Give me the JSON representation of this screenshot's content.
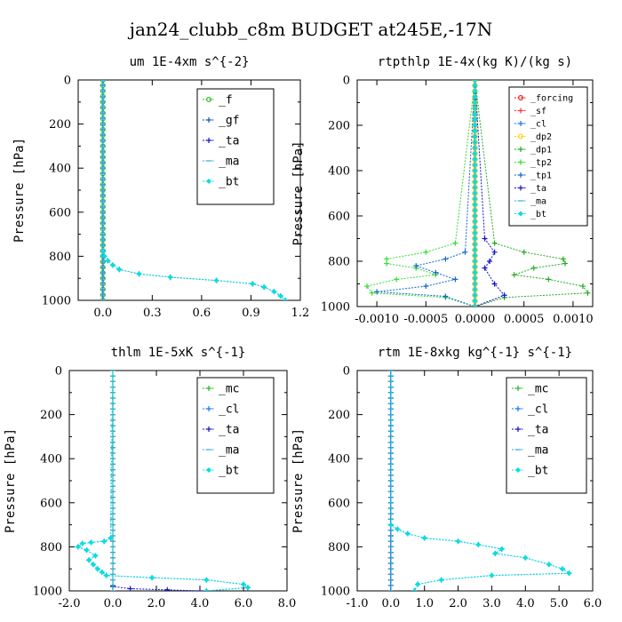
{
  "figure_title": "jan24_clubb_c8m  BUDGET at245E,-17N",
  "colors": {
    "_f": "#22bb22",
    "_gf": "#1155aa",
    "_ta": "#1111cc",
    "_ma": "#33aadd",
    "_bt": "#00e0e0",
    "_mc": "#22bb22",
    "_cl": "#1177ee",
    "_forcing": "#ee1111",
    "_sf": "#ff3333",
    "_dp2": "#ffcc00",
    "_dp1": "#22aa22",
    "_tp2": "#33dd33",
    "_tp1": "#1166cc"
  },
  "chart_data": [
    {
      "type": "line",
      "title": "um  1E-4xm s^{-2}",
      "ylabel": "Pressure [hPa]",
      "xlim": [
        -0.15,
        1.2
      ],
      "ylim": [
        0,
        1000
      ],
      "xticks": [
        "0.0",
        "0.3",
        "0.6",
        "0.9",
        "1.2"
      ],
      "xtick_values": [
        0,
        0.3,
        0.6,
        0.9,
        1.2
      ],
      "yticks": [
        "0",
        "200",
        "400",
        "600",
        "800",
        "1000"
      ],
      "legend": "top-right",
      "series": [
        {
          "name": "_f",
          "x": [
            0,
            0
          ],
          "y": [
            0,
            1000
          ]
        },
        {
          "name": "_gf",
          "x": [
            0,
            0,
            0.01,
            0.03,
            0.06,
            0.1,
            0.22,
            0.41,
            0.69,
            0.91,
            0.98,
            1.04,
            1.08,
            1.11
          ],
          "y": [
            0,
            780,
            800,
            820,
            840,
            860,
            880,
            895,
            910,
            925,
            940,
            960,
            980,
            1000
          ]
        },
        {
          "name": "_ta",
          "x": [
            0,
            0
          ],
          "y": [
            0,
            1000
          ]
        },
        {
          "name": "_ma",
          "x": [
            0,
            0
          ],
          "y": [
            0,
            1000
          ]
        },
        {
          "name": "_bt",
          "x": [
            0,
            0,
            0.01,
            0.03,
            0.06,
            0.1,
            0.22,
            0.41,
            0.69,
            0.91,
            0.98,
            1.04,
            1.08,
            1.11
          ],
          "y": [
            0,
            780,
            800,
            820,
            840,
            860,
            880,
            895,
            910,
            925,
            940,
            960,
            980,
            1000
          ]
        }
      ]
    },
    {
      "type": "line",
      "title": "rtpthlp  1E-4x(kg K)/(kg s)",
      "ylabel": "Pressure [hPa]",
      "xlim": [
        -0.0012,
        0.0012
      ],
      "ylim": [
        0,
        1000
      ],
      "xticks": [
        "-0.0010",
        "-0.0005",
        "0.0000",
        "0.0005",
        "0.0010"
      ],
      "xtick_values": [
        -0.001,
        -0.0005,
        0,
        0.0005,
        0.001
      ],
      "yticks": [
        "0",
        "200",
        "400",
        "600",
        "800",
        "1000"
      ],
      "legend": "top-right",
      "series": [
        {
          "name": "_forcing",
          "x": [
            0,
            0
          ],
          "y": [
            0,
            1000
          ]
        },
        {
          "name": "_sf",
          "x": [
            0,
            0
          ],
          "y": [
            0,
            1000
          ]
        },
        {
          "name": "_cl",
          "x": [
            0,
            0
          ],
          "y": [
            0,
            1000
          ]
        },
        {
          "name": "_dp2",
          "x": [
            0,
            0
          ],
          "y": [
            0,
            1000
          ]
        },
        {
          "name": "_dp1",
          "x": [
            0,
            0.0002,
            0.0005,
            0.0009,
            0.00092,
            0.0006,
            0.0004,
            0.00075,
            0.0011,
            0.00115,
            0.0003,
            0
          ],
          "y": [
            0,
            720,
            760,
            790,
            810,
            830,
            860,
            880,
            910,
            940,
            960,
            1000
          ]
        },
        {
          "name": "_tp2",
          "x": [
            0,
            -0.0002,
            -0.0005,
            -0.0009,
            -0.0009,
            -0.0006,
            -0.0004,
            -0.0008,
            -0.0011,
            -0.00105,
            -0.0003,
            0
          ],
          "y": [
            0,
            720,
            760,
            790,
            810,
            830,
            860,
            880,
            910,
            940,
            960,
            1000
          ]
        },
        {
          "name": "_tp1",
          "x": [
            0,
            -0.0001,
            -0.0003,
            -0.0006,
            -0.0004,
            -0.0002,
            -0.0005,
            -0.001,
            -0.0003,
            0
          ],
          "y": [
            0,
            760,
            790,
            820,
            850,
            880,
            910,
            935,
            955,
            1000
          ]
        },
        {
          "name": "_ta",
          "x": [
            0,
            0.0001,
            0.0002,
            0.00015,
            0.0001,
            0.0002,
            0.0003,
            0
          ],
          "y": [
            0,
            700,
            760,
            800,
            830,
            900,
            950,
            1000
          ]
        },
        {
          "name": "_ma",
          "x": [
            0,
            0
          ],
          "y": [
            0,
            1000
          ]
        },
        {
          "name": "_bt",
          "x": [
            0,
            0
          ],
          "y": [
            0,
            1000
          ]
        }
      ]
    },
    {
      "type": "line",
      "title": "thlm  1E-5xK s^{-1}",
      "ylabel": "Pressure [hPa]",
      "xlim": [
        -2.0,
        8.0
      ],
      "ylim": [
        0,
        1000
      ],
      "xticks": [
        "-2.0",
        "0.0",
        "2.0",
        "4.0",
        "6.0",
        "8.0"
      ],
      "xtick_values": [
        -2,
        0,
        2,
        4,
        6,
        8
      ],
      "yticks": [
        "0",
        "200",
        "400",
        "600",
        "800",
        "1000"
      ],
      "legend": "top-right",
      "series": [
        {
          "name": "_mc",
          "x": [
            0,
            0
          ],
          "y": [
            0,
            1000
          ]
        },
        {
          "name": "_cl",
          "x": [
            0,
            -0.1,
            -0.4,
            -1.0,
            -1.4,
            -1.6,
            -1.2,
            -0.8,
            -1.1,
            -0.9,
            -0.7,
            -0.5,
            -0.3,
            1.8,
            4.3,
            6.0,
            6.2,
            4.3
          ],
          "y": [
            0,
            760,
            775,
            780,
            785,
            800,
            815,
            840,
            860,
            880,
            900,
            915,
            930,
            940,
            950,
            970,
            985,
            1000
          ]
        },
        {
          "name": "_ta",
          "x": [
            0,
            0,
            0.8,
            2.5,
            4.0
          ],
          "y": [
            0,
            980,
            990,
            995,
            1000
          ]
        },
        {
          "name": "_ma",
          "x": [
            0,
            0
          ],
          "y": [
            0,
            1000
          ]
        },
        {
          "name": "_bt",
          "x": [
            0,
            -0.1,
            -0.4,
            -1.0,
            -1.4,
            -1.6,
            -1.2,
            -0.8,
            -1.1,
            -0.9,
            -0.7,
            -0.5,
            -0.3,
            1.8,
            4.3,
            6.0,
            6.2,
            4.3
          ],
          "y": [
            0,
            760,
            775,
            780,
            785,
            800,
            815,
            840,
            860,
            880,
            900,
            915,
            930,
            940,
            950,
            970,
            985,
            1000
          ]
        }
      ]
    },
    {
      "type": "line",
      "title": "rtm  1E-8xkg kg^{-1} s^{-1}",
      "ylabel": "Pressure [hPa]",
      "xlim": [
        -1.0,
        6.0
      ],
      "ylim": [
        0,
        1000
      ],
      "xticks": [
        "-1.0",
        "0.0",
        "1.0",
        "2.0",
        "3.0",
        "4.0",
        "5.0",
        "6.0"
      ],
      "xtick_values": [
        -1,
        0,
        1,
        2,
        3,
        4,
        5,
        6
      ],
      "yticks": [
        "0",
        "200",
        "400",
        "600",
        "800",
        "1000"
      ],
      "legend": "top-right",
      "series": [
        {
          "name": "_mc",
          "x": [
            0,
            0
          ],
          "y": [
            0,
            1000
          ]
        },
        {
          "name": "_cl",
          "x": [
            0,
            0,
            0.2,
            0.5,
            1.0,
            2.0,
            2.6,
            3.3,
            3.1,
            4.0,
            4.7,
            5.1,
            5.3,
            3.0,
            1.5,
            0.8,
            0.7
          ],
          "y": [
            0,
            700,
            720,
            740,
            760,
            775,
            790,
            810,
            830,
            850,
            880,
            900,
            920,
            930,
            950,
            970,
            1000
          ]
        },
        {
          "name": "_ta",
          "x": [
            0,
            0
          ],
          "y": [
            0,
            1000
          ]
        },
        {
          "name": "_ma",
          "x": [
            0,
            0
          ],
          "y": [
            0,
            1000
          ]
        },
        {
          "name": "_bt",
          "x": [
            0,
            0,
            0.2,
            0.5,
            1.0,
            2.0,
            2.6,
            3.3,
            3.1,
            4.0,
            4.7,
            5.1,
            5.3,
            3.0,
            1.5,
            0.8,
            0.7
          ],
          "y": [
            0,
            700,
            720,
            740,
            760,
            775,
            790,
            810,
            830,
            850,
            880,
            900,
            920,
            930,
            950,
            970,
            1000
          ]
        }
      ]
    }
  ]
}
